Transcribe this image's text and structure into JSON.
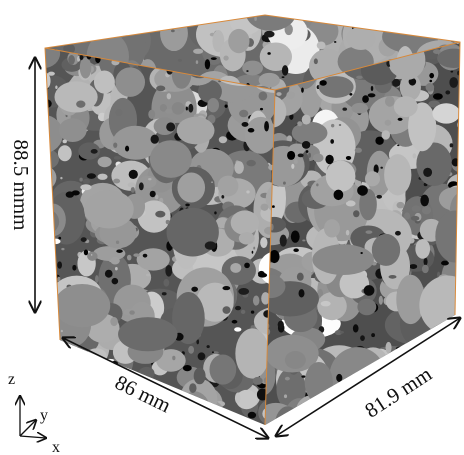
{
  "labels": {
    "height": "88.5 mmm",
    "width": "86 mm",
    "depth": "81.9 mm"
  },
  "axes": {
    "z": "z",
    "y": "y",
    "x": "x"
  }
}
